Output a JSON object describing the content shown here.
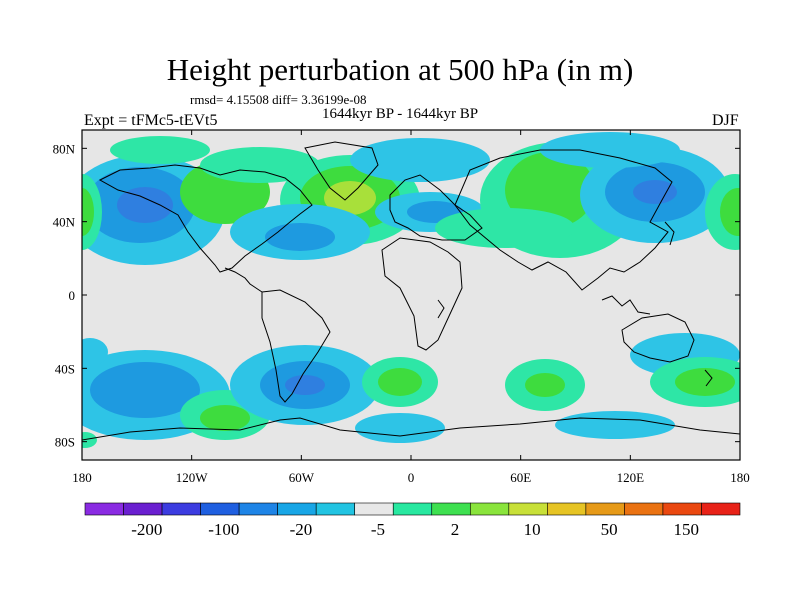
{
  "title": "Height perturbation at 500 hPa (in m)",
  "stats": "rmsd= 4.15508 diff= 3.36199e-08",
  "period": "1644kyr BP - 1644kyr BP",
  "experiment": "Expt = tFMc5-tEVt5",
  "season": "DJF",
  "map": {
    "lon_range": [
      -180,
      180
    ],
    "lat_range": [
      -90,
      90
    ],
    "lon_ticks": [
      "180",
      "120W",
      "60W",
      "0",
      "60E",
      "120E",
      "180"
    ],
    "lat_ticks": [
      "80N",
      "40N",
      "0",
      "40S",
      "80S"
    ],
    "lon_tick_values": [
      -180,
      -120,
      -60,
      0,
      60,
      120,
      180
    ],
    "lat_tick_values": [
      80,
      40,
      0,
      -40,
      -80
    ]
  },
  "colorbar": {
    "colors": [
      "#8a2be2",
      "#6a1fd0",
      "#3c3ce0",
      "#1f5fe0",
      "#1e84e6",
      "#18a6e6",
      "#22c4e2",
      "#e8e8e8",
      "#28e8a0",
      "#3ee050",
      "#8ae43c",
      "#c8e038",
      "#e6c424",
      "#e69a18",
      "#ea7212",
      "#ea4810",
      "#e82218"
    ],
    "labels": [
      "-200",
      "-100",
      "-20",
      "-5",
      "2",
      "10",
      "50",
      "150"
    ],
    "label_slots": [
      1,
      3,
      5,
      7,
      9,
      11,
      13,
      15
    ]
  },
  "field_colors": {
    "neutral": "#e6e6e6",
    "neg_light": "#2ec4e6",
    "neg_mid": "#1e9ae0",
    "neg_dark": "#2f7fe0",
    "pos_light": "#2ee6a6",
    "pos_mid": "#3edc3e",
    "pos_dark": "#a8e03a"
  }
}
